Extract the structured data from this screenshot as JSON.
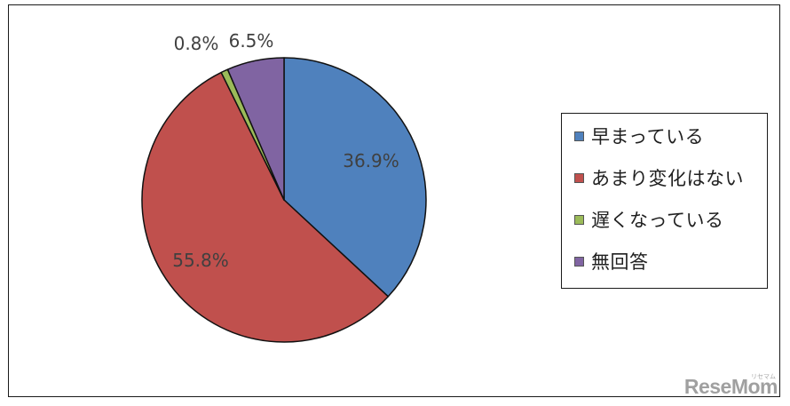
{
  "chart_data": {
    "type": "pie",
    "categories": [
      "早まっている",
      "あまり変化はない",
      "遅くなっている",
      "無回答"
    ],
    "values": [
      36.9,
      55.8,
      0.8,
      6.5
    ],
    "value_labels": [
      "36.9%",
      "55.8%",
      "0.8%",
      "6.5%"
    ],
    "colors": [
      "#4f81bd",
      "#c0504d",
      "#9bbb59",
      "#8064a2"
    ],
    "start_angle": "12 o'clock",
    "direction": "clockwise",
    "legend_position": "right"
  },
  "watermark": {
    "text": "ReseMom",
    "small_text": "リセマム"
  }
}
